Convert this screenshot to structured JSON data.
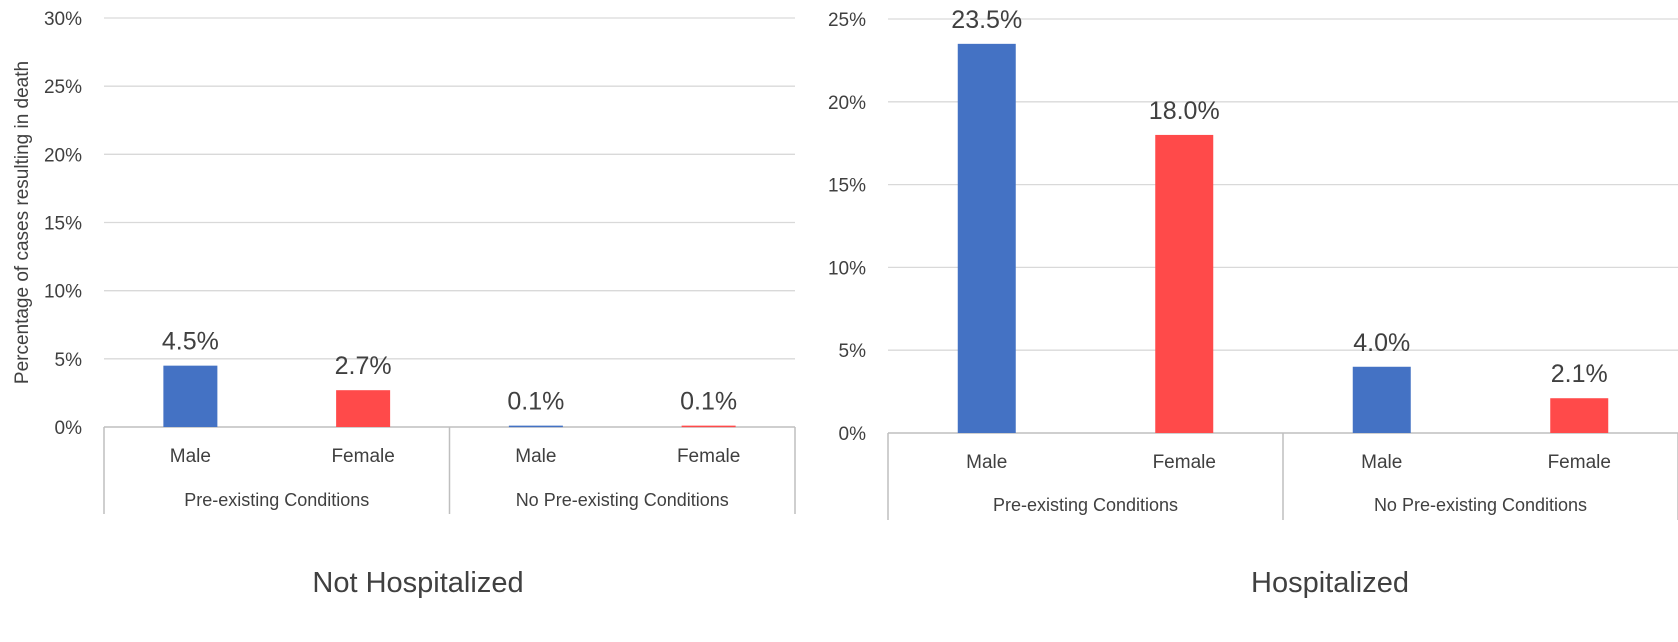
{
  "colors": {
    "male": "#4472C4",
    "female": "#FF4A4A",
    "grid": "#D9D9D9",
    "axis": "#BFBFBF",
    "text": "#404040",
    "title": "#404040"
  },
  "chart_data": [
    {
      "type": "bar",
      "title": "Not Hospitalized",
      "ylabel": "Percentage of cases resulting in death",
      "ylim": [
        0,
        30
      ],
      "yticks": [
        "0%",
        "5%",
        "10%",
        "15%",
        "20%",
        "25%",
        "30%"
      ],
      "groups": [
        "Pre-existing Conditions",
        "No Pre-existing Conditions"
      ],
      "categories": [
        "Male",
        "Female",
        "Male",
        "Female"
      ],
      "values": [
        4.5,
        2.7,
        0.1,
        0.1
      ],
      "value_labels": [
        "4.5%",
        "2.7%",
        "0.1%",
        "0.1%"
      ],
      "grid": true
    },
    {
      "type": "bar",
      "title": "Hospitalized",
      "ylabel": "",
      "ylim": [
        0,
        25
      ],
      "yticks": [
        "0%",
        "5%",
        "10%",
        "15%",
        "20%",
        "25%"
      ],
      "groups": [
        "Pre-existing Conditions",
        "No Pre-existing Conditions"
      ],
      "categories": [
        "Male",
        "Female",
        "Male",
        "Female"
      ],
      "values": [
        23.5,
        18.0,
        4.0,
        2.1
      ],
      "value_labels": [
        "23.5%",
        "18.0%",
        "4.0%",
        "2.1%"
      ],
      "grid": true
    }
  ]
}
